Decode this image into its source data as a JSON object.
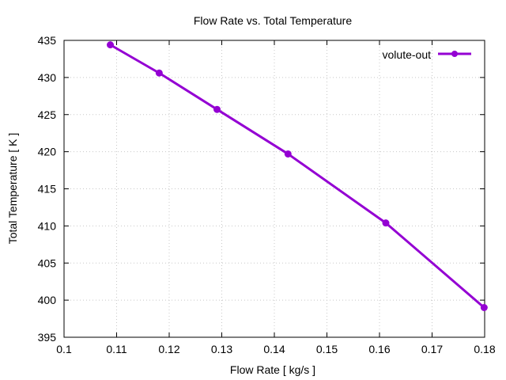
{
  "chart_data": {
    "type": "line",
    "title": "Flow Rate vs. Total Temperature",
    "xlabel": "Flow Rate [ kg/s ]",
    "ylabel": "Total Temperature [ K ]",
    "xlim": [
      0.1,
      0.18
    ],
    "ylim": [
      395,
      435
    ],
    "xticks": [
      0.1,
      0.11,
      0.12,
      0.13,
      0.14,
      0.15,
      0.16,
      0.17,
      0.18
    ],
    "yticks": [
      395,
      400,
      405,
      410,
      415,
      420,
      425,
      430,
      435
    ],
    "xtick_labels": [
      "0.1",
      "0.11",
      "0.12",
      "0.13",
      "0.14",
      "0.15",
      "0.16",
      "0.17",
      "0.18"
    ],
    "ytick_labels": [
      "395",
      "400",
      "405",
      "410",
      "415",
      "420",
      "425",
      "430",
      "435"
    ],
    "grid": true,
    "legend_position": "top-right",
    "series": [
      {
        "name": "volute-out",
        "color": "#9400d3",
        "marker": "circle",
        "x": [
          0.1088,
          0.1181,
          0.1291,
          0.1426,
          0.1612,
          0.1799
        ],
        "y": [
          434.4,
          430.6,
          425.7,
          419.7,
          410.4,
          399.0
        ]
      }
    ]
  }
}
